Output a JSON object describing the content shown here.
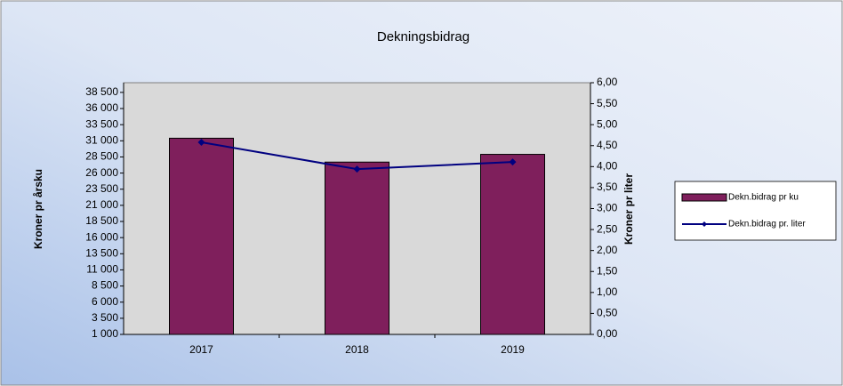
{
  "chart_data": {
    "type": "bar-line",
    "title": "Dekningsbidrag",
    "categories": [
      "2017",
      "2018",
      "2019"
    ],
    "series": [
      {
        "name": "Dekn.bidrag pr ku",
        "type": "bar",
        "color": "#7f1f5c",
        "values": [
          31400,
          27700,
          28900
        ]
      },
      {
        "name": "Dekn.bidrag pr. liter",
        "type": "line",
        "axis": "y2",
        "color": "#000080",
        "values": [
          4.58,
          3.94,
          4.11
        ]
      }
    ],
    "ylabel": "Kroner pr årsku",
    "y2label": "Kroner pr liter",
    "ylim": [
      1000,
      40000
    ],
    "yticks": [
      {
        "value": 1000,
        "label": "1 000"
      },
      {
        "value": 3500,
        "label": "3 500"
      },
      {
        "value": 6000,
        "label": "6 000"
      },
      {
        "value": 8500,
        "label": "8 500"
      },
      {
        "value": 11000,
        "label": "11 000"
      },
      {
        "value": 13500,
        "label": "13 500"
      },
      {
        "value": 16000,
        "label": "16 000"
      },
      {
        "value": 18500,
        "label": "18 500"
      },
      {
        "value": 21000,
        "label": "21 000"
      },
      {
        "value": 23500,
        "label": "23 500"
      },
      {
        "value": 26000,
        "label": "26 000"
      },
      {
        "value": 28500,
        "label": "28 500"
      },
      {
        "value": 31000,
        "label": "31 000"
      },
      {
        "value": 33500,
        "label": "33 500"
      },
      {
        "value": 36000,
        "label": "36 000"
      },
      {
        "value": 38500,
        "label": "38 500"
      }
    ],
    "y2lim": [
      0,
      6
    ],
    "y2ticks": [
      {
        "value": 0,
        "label": "0,00"
      },
      {
        "value": 0.5,
        "label": "0,50"
      },
      {
        "value": 1,
        "label": "1,00"
      },
      {
        "value": 1.5,
        "label": "1,50"
      },
      {
        "value": 2,
        "label": "2,00"
      },
      {
        "value": 2.5,
        "label": "2,50"
      },
      {
        "value": 3,
        "label": "3,00"
      },
      {
        "value": 3.5,
        "label": "3,50"
      },
      {
        "value": 4,
        "label": "4,00"
      },
      {
        "value": 4.5,
        "label": "4,50"
      },
      {
        "value": 5,
        "label": "5,00"
      },
      {
        "value": 5.5,
        "label": "5,50"
      },
      {
        "value": 6,
        "label": "6,00"
      }
    ],
    "legend": "right",
    "plot_background": "#d9d9d9"
  }
}
